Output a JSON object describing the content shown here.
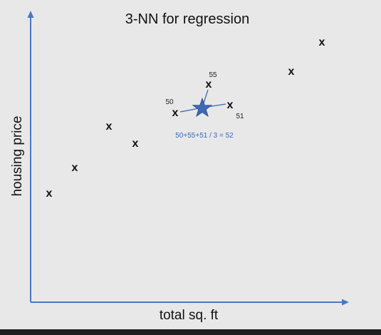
{
  "title": "3-NN for regression",
  "x_axis_label": "total sq. ft",
  "y_axis_label": "housing price",
  "data_marker": "x",
  "neighbor_labels": {
    "left": "50",
    "top": "55",
    "right": "51"
  },
  "formula": "50+55+51 / 3 = 52",
  "colors": {
    "background": "#e8e8e8",
    "axis": "#4a78c2",
    "query_star": "#3d68b6",
    "formula": "#3a68b8",
    "bottom_bar": "#1e1e1e"
  }
}
